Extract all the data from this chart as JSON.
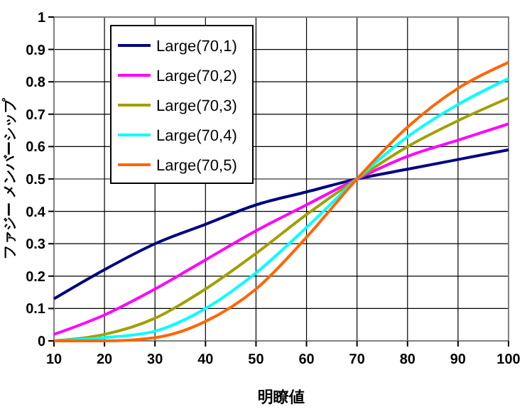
{
  "chart_data": {
    "type": "line",
    "xlabel": "明瞭値",
    "ylabel": "ファジー メンバーシップ",
    "x": [
      10,
      20,
      30,
      40,
      50,
      60,
      70,
      80,
      90,
      100
    ],
    "series": [
      {
        "name": "Large(70,1)",
        "color": "#000080",
        "values": [
          0.13,
          0.22,
          0.3,
          0.36,
          0.42,
          0.46,
          0.5,
          0.53,
          0.56,
          0.59
        ]
      },
      {
        "name": "Large(70,2)",
        "color": "#ff00ff",
        "values": [
          0.02,
          0.08,
          0.16,
          0.25,
          0.34,
          0.42,
          0.5,
          0.57,
          0.62,
          0.67
        ]
      },
      {
        "name": "Large(70,3)",
        "color": "#a0a000",
        "values": [
          0,
          0.02,
          0.07,
          0.16,
          0.27,
          0.39,
          0.5,
          0.6,
          0.68,
          0.75
        ]
      },
      {
        "name": "Large(70,4)",
        "color": "#00ffff",
        "values": [
          0,
          0.01,
          0.03,
          0.1,
          0.21,
          0.35,
          0.5,
          0.63,
          0.73,
          0.81
        ]
      },
      {
        "name": "Large(70,5)",
        "color": "#ff6600",
        "values": [
          0,
          0,
          0.01,
          0.06,
          0.16,
          0.32,
          0.5,
          0.66,
          0.78,
          0.86
        ]
      }
    ],
    "xlim": [
      10,
      100
    ],
    "xticks": [
      10,
      20,
      30,
      40,
      50,
      60,
      70,
      80,
      90,
      100
    ],
    "ylim": [
      0,
      1
    ],
    "yticks": [
      0,
      0.1,
      0.2,
      0.3,
      0.4,
      0.5,
      0.6,
      0.7,
      0.8,
      0.9,
      1
    ],
    "grid": true,
    "legend": "top left",
    "marker": "none",
    "line_style": "solid"
  }
}
